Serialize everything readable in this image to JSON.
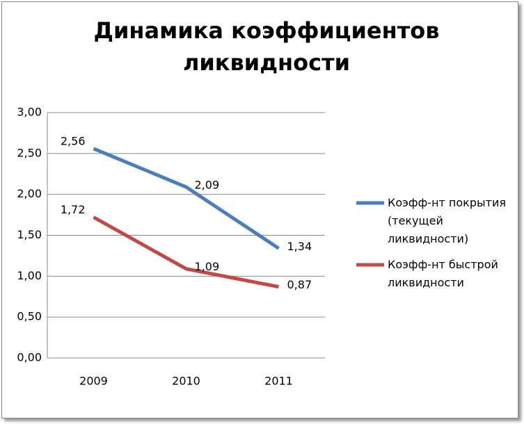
{
  "chart_data": {
    "type": "line",
    "title": "Динамика коэффициентов ликвидности",
    "categories": [
      "2009",
      "2010",
      "2011"
    ],
    "series": [
      {
        "name": "Коэфф-нт покрытия (текущей ликвидности)",
        "color": "#4a7ebb",
        "values": [
          2.56,
          2.09,
          1.34
        ],
        "value_labels": [
          "2,56",
          "2,09",
          "1,34"
        ]
      },
      {
        "name": "Коэфф-нт быстрой ликвидности",
        "color": "#be4b48",
        "values": [
          1.72,
          1.09,
          0.87
        ],
        "value_labels": [
          "1,72",
          "1,09",
          "0,87"
        ]
      }
    ],
    "ylim": [
      0,
      3
    ],
    "yticks": [
      {
        "value": 0,
        "label": "0,00"
      },
      {
        "value": 0.5,
        "label": "0,50"
      },
      {
        "value": 1,
        "label": "1,00"
      },
      {
        "value": 1.5,
        "label": "1,50"
      },
      {
        "value": 2,
        "label": "2,00"
      },
      {
        "value": 2.5,
        "label": "2,50"
      },
      {
        "value": 3,
        "label": "3,00"
      }
    ],
    "grid": true,
    "legend": "right"
  }
}
